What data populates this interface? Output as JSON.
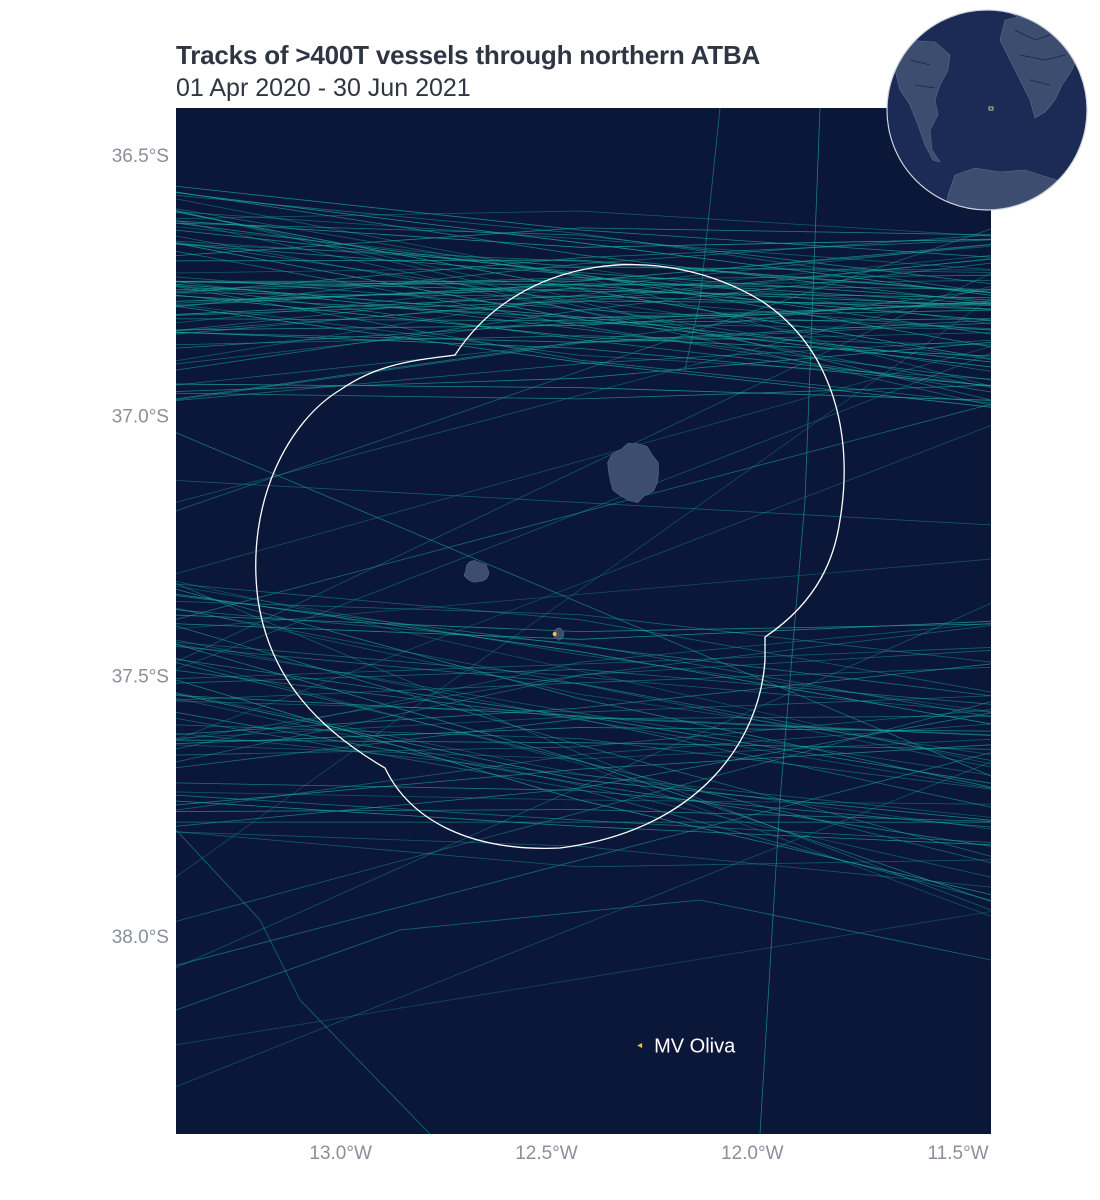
{
  "title": "Tracks of >400T vessels through northern ATBA",
  "subtitle": "01 Apr 2020 - 30 Jun 2021",
  "colors": {
    "ocean": "#0b1739",
    "land": "#3d4d70",
    "tracks": "#19a99a",
    "atba_border": "#ffffff",
    "vessel_marker": "#f0c040",
    "axis_text": "#8a8f9c",
    "title_text": "#2f3542"
  },
  "map": {
    "lon_range": [
      -13.4,
      -11.42
    ],
    "lat_range": [
      -38.38,
      -36.41
    ],
    "x_ticks": [
      {
        "value": -13.0,
        "label": "13.0°W"
      },
      {
        "value": -12.5,
        "label": "12.5°W"
      },
      {
        "value": -12.0,
        "label": "12.0°W"
      },
      {
        "value": -11.5,
        "label": "11.5°W"
      }
    ],
    "y_ticks": [
      {
        "value": -36.5,
        "label": "36.5°S"
      },
      {
        "value": -37.0,
        "label": "37.0°S"
      },
      {
        "value": -37.5,
        "label": "37.5°S"
      },
      {
        "value": -38.0,
        "label": "38.0°S"
      }
    ],
    "islands": [
      {
        "name": "tristan-da-cunha",
        "lon": -12.29,
        "lat": -37.11,
        "r_lon": 0.065,
        "r_lat": 0.055
      },
      {
        "name": "inaccessible-island",
        "lon": -12.67,
        "lat": -37.3,
        "r_lon": 0.03,
        "r_lat": 0.02
      },
      {
        "name": "nightingale-island",
        "lon": -12.47,
        "lat": -37.42,
        "r_lon": 0.012,
        "r_lat": 0.012
      }
    ],
    "vessel": {
      "label": "MV Oliva",
      "lon": -12.27,
      "lat": -38.21
    }
  },
  "inset": {
    "type": "globe",
    "focus_label": "Tristan da Cunha area"
  }
}
